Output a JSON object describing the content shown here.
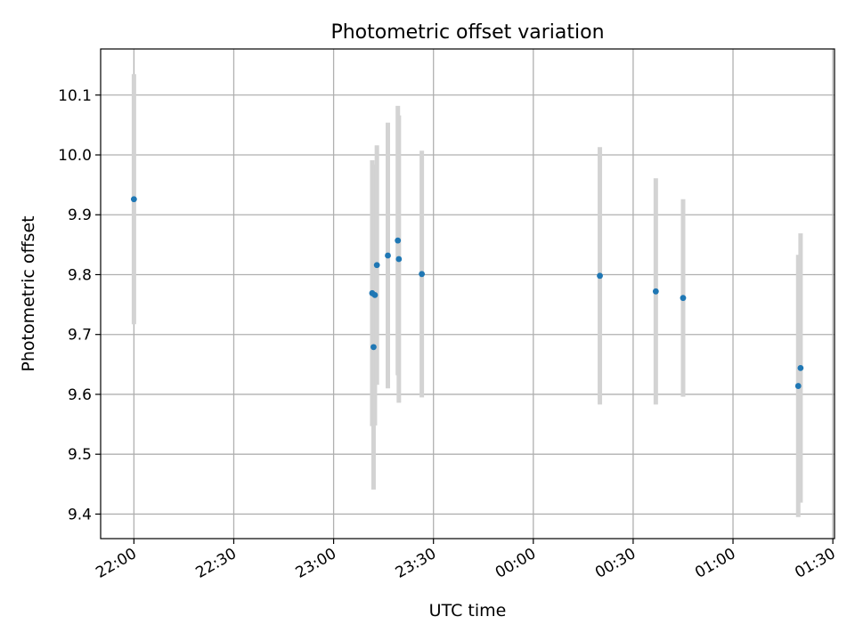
{
  "chart_data": {
    "type": "scatter",
    "title": "Photometric offset variation",
    "xlabel": "UTC time",
    "ylabel": "Photometric offset",
    "x_tick_labels": [
      "22:00",
      "22:30",
      "23:00",
      "23:30",
      "00:00",
      "00:30",
      "01:00",
      "01:30"
    ],
    "x_tick_minutes": [
      0,
      30,
      60,
      90,
      120,
      150,
      180,
      210
    ],
    "xlim_minutes": [
      -10,
      210.5
    ],
    "y_ticks": [
      9.4,
      9.5,
      9.6,
      9.7,
      9.8,
      9.9,
      10.0,
      10.1
    ],
    "y_tick_labels": [
      "9.4",
      "9.5",
      "9.6",
      "9.7",
      "9.8",
      "9.9",
      "10.0",
      "10.1"
    ],
    "ylim": [
      9.359,
      10.177
    ],
    "grid": true,
    "point_color": "#1f77b4",
    "errorbar_color": "#d3d3d3",
    "points": [
      {
        "t": 0.0,
        "y": 9.926,
        "err": 0.209
      },
      {
        "t": 71.6,
        "y": 9.769,
        "err": 0.222
      },
      {
        "t": 72.0,
        "y": 9.679,
        "err": 0.238
      },
      {
        "t": 72.4,
        "y": 9.766,
        "err": 0.218
      },
      {
        "t": 73.0,
        "y": 9.816,
        "err": 0.2
      },
      {
        "t": 76.3,
        "y": 9.832,
        "err": 0.222
      },
      {
        "t": 79.3,
        "y": 9.857,
        "err": 0.225
      },
      {
        "t": 79.6,
        "y": 9.826,
        "err": 0.24
      },
      {
        "t": 86.5,
        "y": 9.801,
        "err": 0.206
      },
      {
        "t": 140.0,
        "y": 9.798,
        "err": 0.215
      },
      {
        "t": 156.8,
        "y": 9.772,
        "err": 0.189
      },
      {
        "t": 165.0,
        "y": 9.761,
        "err": 0.165
      },
      {
        "t": 199.6,
        "y": 9.614,
        "err": 0.219
      },
      {
        "t": 200.3,
        "y": 9.644,
        "err": 0.225
      }
    ]
  }
}
